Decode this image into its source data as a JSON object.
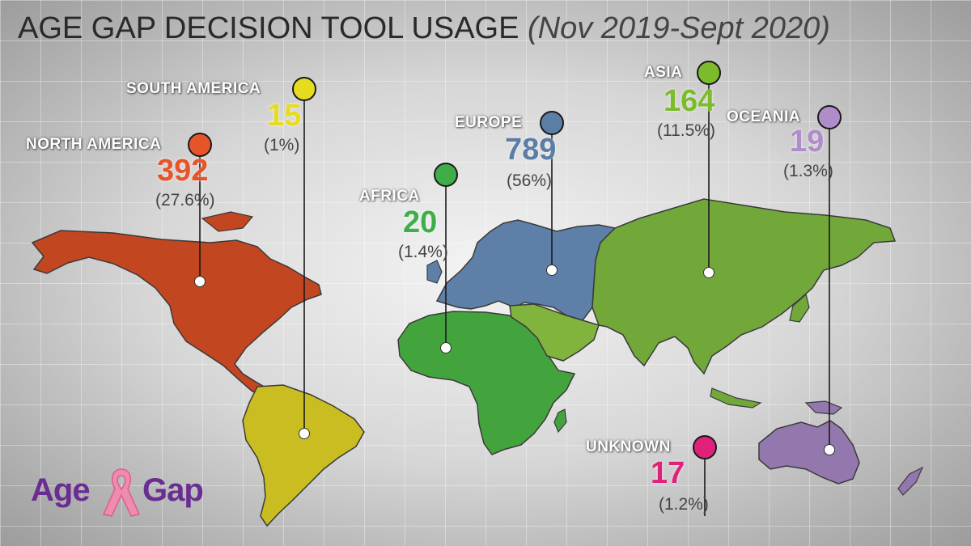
{
  "title": {
    "main": "AGE GAP DECISION TOOL USAGE",
    "sub": "(Nov 2019-Sept 2020)"
  },
  "regions": [
    {
      "key": "north_america",
      "name": "NORTH AMERICA",
      "count": "392",
      "pct": "(27.6%)",
      "color": "#e8542a",
      "fill": "#c2461f"
    },
    {
      "key": "south_america",
      "name": "SOUTH AMERICA",
      "count": "15",
      "pct": "(1%)",
      "color": "#e6dc1f",
      "fill": "#c9bd22"
    },
    {
      "key": "africa",
      "name": "AFRICA",
      "count": "20",
      "pct": "(1.4%)",
      "color": "#3fae49",
      "fill": "#43a43e"
    },
    {
      "key": "europe",
      "name": "EUROPE",
      "count": "789",
      "pct": "(56%)",
      "color": "#5b7ea6",
      "fill": "#5e80a8"
    },
    {
      "key": "asia",
      "name": "ASIA",
      "count": "164",
      "pct": "(11.5%)",
      "color": "#7cbb2c",
      "fill": "#72a83a"
    },
    {
      "key": "oceania",
      "name": "OCEANIA",
      "count": "19",
      "pct": "(1.3%)",
      "color": "#b08ccb",
      "fill": "#9378ad"
    },
    {
      "key": "unknown",
      "name": "UNKNOWN",
      "count": "17",
      "pct": "(1.2%)",
      "color": "#e0217a",
      "fill": "#e0217a"
    }
  ],
  "logo": {
    "left_text": "Age",
    "right_text": "Gap",
    "ribbon_color": "#f08bb0"
  }
}
